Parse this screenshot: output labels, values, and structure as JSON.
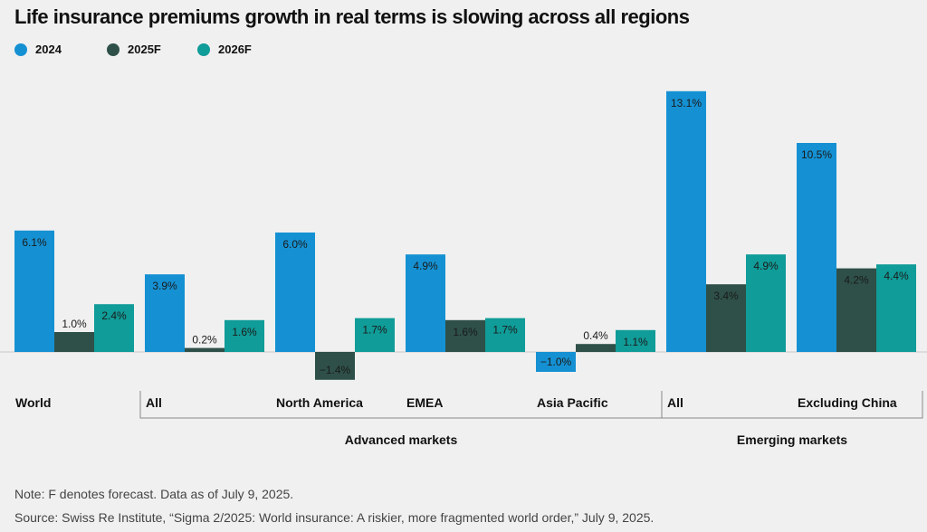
{
  "chart_data": {
    "type": "bar",
    "title": "Life insurance premiums growth in real terms is slowing across all regions",
    "categories": [
      "World",
      "All",
      "North America",
      "EMEA",
      "Asia Pacific",
      "All",
      "Excluding China"
    ],
    "category_groups": [
      {
        "label": "Advanced markets",
        "categories": [
          1,
          2,
          3,
          4
        ]
      },
      {
        "label": "Emerging markets",
        "categories": [
          5,
          6
        ]
      }
    ],
    "series": [
      {
        "name": "2024",
        "color": "#1591d3",
        "values": [
          6.1,
          3.9,
          6.0,
          4.9,
          -1.0,
          13.1,
          10.5
        ]
      },
      {
        "name": "2025F",
        "color": "#2e5048",
        "values": [
          1.0,
          0.2,
          -1.4,
          1.6,
          0.4,
          3.4,
          4.2
        ]
      },
      {
        "name": "2026F",
        "color": "#109c98",
        "values": [
          2.4,
          1.6,
          1.7,
          1.7,
          1.1,
          4.9,
          4.4
        ]
      }
    ],
    "value_suffix": "%",
    "legend": "top-left",
    "grid": false
  },
  "notes": [
    "Note: F denotes forecast. Data as of July 9, 2025.",
    "Source: Swiss Re Institute, “Sigma 2/2025: World insurance: A riskier, more fragmented world order,” July 9, 2025."
  ]
}
